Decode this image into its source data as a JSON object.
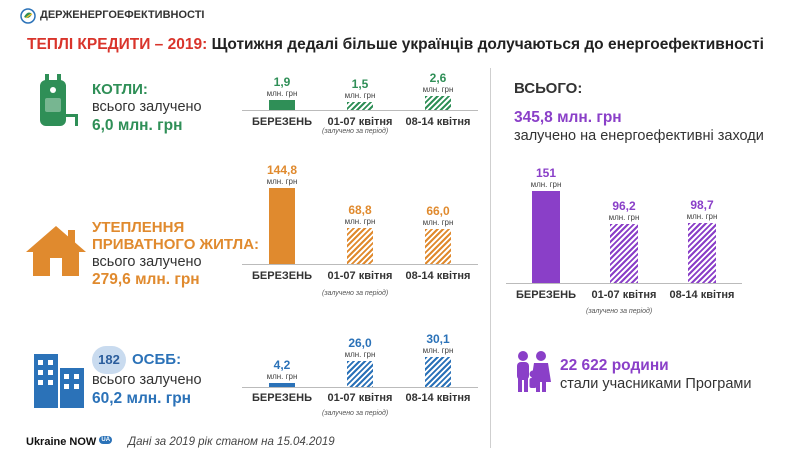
{
  "header": {
    "logo_text": "ДЕРЖЕНЕРГОЕФЕКТИВНОСТІ",
    "title_red": "ТЕПЛІ КРЕДИТИ – 2019:",
    "title_dark": "Щотижня дедалі більше українців долучаються до енергоефективності"
  },
  "colors": {
    "green": "#2f8f57",
    "orange": "#e08a2e",
    "blue": "#2b72b8",
    "purple": "#8a3fc8",
    "red": "#d9342b"
  },
  "categories": [
    "БЕРЕЗЕНЬ",
    "01-07 квітня",
    "08-14 квітня"
  ],
  "note": "(залучено за період)",
  "unit": "млн. грн",
  "sections": {
    "boilers": {
      "icon": "boiler-icon",
      "title": "КОТЛИ:",
      "subtitle": "всього залучено",
      "total": "6,0 млн. грн",
      "value_labels": [
        "1,9",
        "1,5",
        "2,6"
      ]
    },
    "insulation": {
      "icon": "house-icon",
      "title_line1": "УТЕПЛЕННЯ",
      "title_line2": "ПРИВАТНОГО ЖИТЛА:",
      "subtitle": "всього залучено",
      "total": "279,6 млн. грн",
      "value_labels": [
        "144,8",
        "68,8",
        "66,0"
      ]
    },
    "osbb": {
      "icon": "buildings-icon",
      "badge": "182",
      "title": "ОСББ:",
      "subtitle": "всього залучено",
      "total": "60,2 млн. грн",
      "value_labels": [
        "4,2",
        "26,0",
        "30,1"
      ]
    },
    "total": {
      "heading": "ВСЬОГО:",
      "amount": "345,8 млн. грн",
      "subtitle": "залучено на енергоефективні заходи",
      "value_labels": [
        "151",
        "96,2",
        "98,7"
      ]
    },
    "families": {
      "icon": "family-icon",
      "count": "22 622 родини",
      "text": "стали учасниками Програми"
    }
  },
  "footer": {
    "brand": "Ukraine NOW",
    "brand_badge": "UA",
    "note": "Дані за 2019 рік станом на 15.04.2019"
  },
  "chart_data": [
    {
      "type": "bar",
      "title": "КОТЛИ",
      "categories": [
        "БЕРЕЗЕНЬ",
        "01-07 квітня",
        "08-14 квітня"
      ],
      "values": [
        1.9,
        1.5,
        2.6
      ],
      "unit": "млн. грн"
    },
    {
      "type": "bar",
      "title": "УТЕПЛЕННЯ ПРИВАТНОГО ЖИТЛА",
      "categories": [
        "БЕРЕЗЕНЬ",
        "01-07 квітня",
        "08-14 квітня"
      ],
      "values": [
        144.8,
        68.8,
        66.0
      ],
      "unit": "млн. грн"
    },
    {
      "type": "bar",
      "title": "ОСББ",
      "categories": [
        "БЕРЕЗЕНЬ",
        "01-07 квітня",
        "08-14 квітня"
      ],
      "values": [
        4.2,
        26.0,
        30.1
      ],
      "unit": "млн. грн"
    },
    {
      "type": "bar",
      "title": "ВСЬОГО",
      "categories": [
        "БЕРЕЗЕНЬ",
        "01-07 квітня",
        "08-14 квітня"
      ],
      "values": [
        151,
        96.2,
        98.7
      ],
      "unit": "млн. грн"
    }
  ]
}
